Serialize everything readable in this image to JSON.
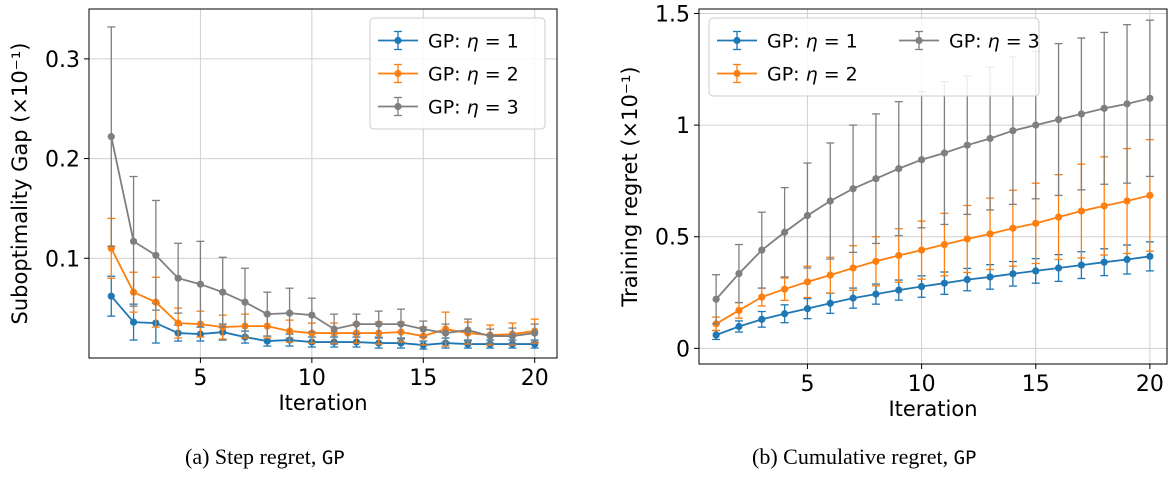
{
  "chart_data": [
    {
      "type": "line",
      "id": "step",
      "xlabel": "Iteration",
      "ylabel": "Suboptimality Gap (×10⁻¹)",
      "xlim": [
        0,
        21
      ],
      "ylim": [
        0,
        0.35
      ],
      "xticks": [
        5,
        10,
        15,
        20
      ],
      "xtick_labels": [
        "5",
        "10",
        "15",
        "20"
      ],
      "yticks": [
        0.1,
        0.2,
        0.3
      ],
      "ytick_labels": [
        "0.1",
        "0.2",
        "0.3"
      ],
      "grid": true,
      "legend_position": "top-right",
      "legend_columns": 1,
      "x": [
        1,
        2,
        3,
        4,
        5,
        6,
        7,
        8,
        9,
        10,
        11,
        12,
        13,
        14,
        15,
        16,
        17,
        18,
        19,
        20
      ],
      "series": [
        {
          "name": "GP: η = 1",
          "legend_prefix": "GP: ",
          "legend_sym": "η",
          "legend_suffix": " = 1",
          "color": "#1f77b4",
          "values": [
            0.062,
            0.036,
            0.035,
            0.025,
            0.024,
            0.026,
            0.021,
            0.017,
            0.018,
            0.016,
            0.016,
            0.016,
            0.015,
            0.015,
            0.013,
            0.015,
            0.014,
            0.014,
            0.014,
            0.014
          ],
          "errors": [
            0.02,
            0.018,
            0.02,
            0.008,
            0.007,
            0.008,
            0.006,
            0.005,
            0.006,
            0.005,
            0.005,
            0.005,
            0.005,
            0.005,
            0.004,
            0.005,
            0.004,
            0.004,
            0.004,
            0.004
          ]
        },
        {
          "name": "GP: η = 2",
          "legend_prefix": "GP: ",
          "legend_sym": "η",
          "legend_suffix": " = 2",
          "color": "#ff7f0e",
          "values": [
            0.11,
            0.066,
            0.056,
            0.035,
            0.034,
            0.031,
            0.032,
            0.032,
            0.027,
            0.025,
            0.025,
            0.025,
            0.025,
            0.026,
            0.022,
            0.029,
            0.025,
            0.023,
            0.024,
            0.027
          ],
          "errors": [
            0.03,
            0.02,
            0.025,
            0.015,
            0.013,
            0.012,
            0.012,
            0.012,
            0.011,
            0.01,
            0.01,
            0.01,
            0.011,
            0.01,
            0.009,
            0.017,
            0.011,
            0.01,
            0.011,
            0.012
          ]
        },
        {
          "name": "GP: η = 3",
          "legend_prefix": "GP: ",
          "legend_sym": "η",
          "legend_suffix": " = 3",
          "color": "#7f7f7f",
          "values": [
            0.222,
            0.117,
            0.103,
            0.08,
            0.074,
            0.066,
            0.056,
            0.044,
            0.045,
            0.043,
            0.029,
            0.034,
            0.034,
            0.034,
            0.029,
            0.025,
            0.028,
            0.022,
            0.022,
            0.025
          ],
          "errors": [
            0.11,
            0.065,
            0.055,
            0.035,
            0.043,
            0.035,
            0.034,
            0.022,
            0.025,
            0.017,
            0.015,
            0.01,
            0.013,
            0.015,
            0.008,
            0.009,
            0.011,
            0.007,
            0.008,
            0.009
          ]
        }
      ]
    },
    {
      "type": "line",
      "id": "cumulative",
      "xlabel": "Iteration",
      "ylabel": "Training regret (×10⁻¹)",
      "xlim": [
        0.25,
        20.75
      ],
      "ylim": [
        -0.07,
        1.52
      ],
      "xticks": [
        5,
        10,
        15,
        20
      ],
      "xtick_labels": [
        "5",
        "10",
        "15",
        "20"
      ],
      "yticks": [
        0,
        0.5,
        1,
        1.5
      ],
      "ytick_labels": [
        "0",
        "0.5",
        "1",
        "1.5"
      ],
      "grid": true,
      "legend_position": "top-left",
      "legend_columns": 2,
      "x": [
        1,
        2,
        3,
        4,
        5,
        6,
        7,
        8,
        9,
        10,
        11,
        12,
        13,
        14,
        15,
        16,
        17,
        18,
        19,
        20
      ],
      "series": [
        {
          "name": "GP: η = 1",
          "legend_prefix": "GP: ",
          "legend_sym": "η",
          "legend_suffix": " = 1",
          "color": "#1f77b4",
          "values": [
            0.06,
            0.098,
            0.13,
            0.155,
            0.178,
            0.202,
            0.225,
            0.243,
            0.261,
            0.277,
            0.292,
            0.308,
            0.32,
            0.334,
            0.347,
            0.36,
            0.373,
            0.386,
            0.398,
            0.412
          ],
          "errors": [
            0.02,
            0.025,
            0.035,
            0.04,
            0.045,
            0.045,
            0.045,
            0.045,
            0.045,
            0.048,
            0.05,
            0.05,
            0.055,
            0.055,
            0.055,
            0.06,
            0.06,
            0.06,
            0.065,
            0.065
          ]
        },
        {
          "name": "GP: η = 2",
          "legend_prefix": "GP: ",
          "legend_sym": "η",
          "legend_suffix": " = 2",
          "color": "#ff7f0e",
          "values": [
            0.11,
            0.17,
            0.23,
            0.265,
            0.298,
            0.328,
            0.36,
            0.39,
            0.416,
            0.44,
            0.465,
            0.49,
            0.513,
            0.538,
            0.56,
            0.588,
            0.615,
            0.638,
            0.66,
            0.685
          ],
          "errors": [
            0.03,
            0.035,
            0.04,
            0.05,
            0.07,
            0.08,
            0.1,
            0.11,
            0.12,
            0.13,
            0.14,
            0.15,
            0.16,
            0.17,
            0.18,
            0.19,
            0.21,
            0.22,
            0.235,
            0.25
          ]
        },
        {
          "name": "GP: η = 3",
          "legend_prefix": "GP: ",
          "legend_sym": "η",
          "legend_suffix": " = 3",
          "color": "#7f7f7f",
          "values": [
            0.22,
            0.335,
            0.44,
            0.52,
            0.595,
            0.66,
            0.715,
            0.76,
            0.805,
            0.845,
            0.875,
            0.91,
            0.94,
            0.975,
            1.0,
            1.025,
            1.05,
            1.075,
            1.095,
            1.12
          ],
          "errors": [
            0.11,
            0.13,
            0.17,
            0.2,
            0.235,
            0.26,
            0.285,
            0.29,
            0.3,
            0.305,
            0.32,
            0.31,
            0.32,
            0.33,
            0.33,
            0.34,
            0.34,
            0.34,
            0.355,
            0.35
          ]
        }
      ]
    }
  ],
  "captions": {
    "a_text": "(a) Step regret, ",
    "a_code": "GP",
    "b_text": "(b) Cumulative regret, ",
    "b_code": "GP"
  }
}
